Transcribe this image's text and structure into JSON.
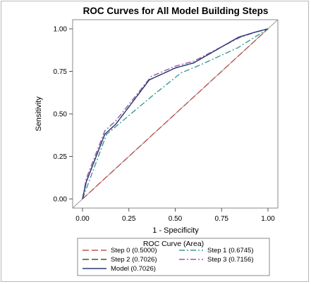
{
  "chart_data": {
    "type": "line",
    "title": "ROC Curves for All Model Building Steps",
    "xlabel": "1 - Specificity",
    "ylabel": "Sensitivity",
    "xlim": [
      0,
      1
    ],
    "ylim": [
      0,
      1
    ],
    "xticks": [
      "0.00",
      "0.25",
      "0.50",
      "0.75",
      "1.00"
    ],
    "yticks": [
      "0.00",
      "0.25",
      "0.50",
      "0.75",
      "1.00"
    ],
    "grid": false,
    "reference_line": "diagonal",
    "legend": {
      "title": "ROC Curve (Area)",
      "placement": "bottom",
      "entries": [
        "Step 0  (0.5000)",
        "Step 1  (0.6745)",
        "Step 2  (0.7026)",
        "Step 3  (0.7156)",
        "Model  (0.7026)"
      ]
    },
    "series": [
      {
        "name": "Step 0  (0.5000)",
        "color": "#c05050",
        "dash": "longdash",
        "x": [
          0,
          1
        ],
        "y": [
          0,
          1
        ]
      },
      {
        "name": "Step 1  (0.6745)",
        "color": "#3a9a98",
        "dash": "dashdot",
        "x": [
          0,
          0.13,
          0.37,
          0.53,
          0.64,
          0.84,
          1.0
        ],
        "y": [
          0,
          0.38,
          0.6,
          0.74,
          0.79,
          0.89,
          1.0
        ]
      },
      {
        "name": "Step 2  (0.7026)",
        "color": "#3a5a2a",
        "dash": "longdash",
        "x": [
          0,
          0.02,
          0.12,
          0.18,
          0.36,
          0.5,
          0.6,
          0.84,
          0.93,
          1.0
        ],
        "y": [
          0,
          0.1,
          0.38,
          0.44,
          0.7,
          0.77,
          0.8,
          0.95,
          0.98,
          1.0
        ]
      },
      {
        "name": "Step 3  (0.7156)",
        "color": "#9a58a8",
        "dash": "dashdot",
        "x": [
          0,
          0.02,
          0.12,
          0.18,
          0.37,
          0.5,
          0.6,
          0.85,
          0.93,
          1.0
        ],
        "y": [
          0,
          0.12,
          0.4,
          0.46,
          0.72,
          0.78,
          0.81,
          0.95,
          0.98,
          1.0
        ]
      },
      {
        "name": "Model  (0.7026)",
        "color": "#2c3a78",
        "dash": "solid",
        "x": [
          0,
          0.02,
          0.12,
          0.18,
          0.36,
          0.5,
          0.6,
          0.84,
          0.93,
          1.0
        ],
        "y": [
          0,
          0.1,
          0.38,
          0.44,
          0.7,
          0.77,
          0.8,
          0.95,
          0.98,
          1.0
        ]
      }
    ]
  }
}
